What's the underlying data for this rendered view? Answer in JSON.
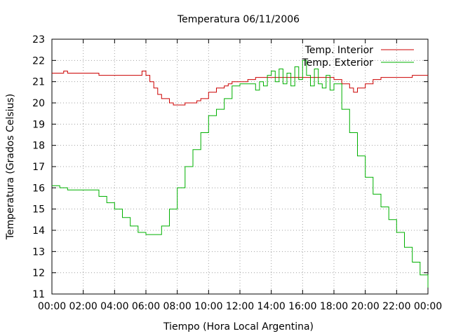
{
  "chart_data": {
    "type": "line",
    "title": "Temperatura 06/11/2006",
    "xlabel": "Tiempo (Hora Local Argentina)",
    "ylabel": "Temperatura (Grados Celsius)",
    "xlim": [
      0,
      24
    ],
    "ylim": [
      11,
      23
    ],
    "grid": true,
    "legend_position": "top-right",
    "x_ticks": [
      "00:00",
      "02:00",
      "04:00",
      "06:00",
      "08:00",
      "10:00",
      "12:00",
      "14:00",
      "16:00",
      "18:00",
      "20:00",
      "22:00",
      "00:00"
    ],
    "y_ticks": [
      "11",
      "12",
      "13",
      "14",
      "15",
      "16",
      "17",
      "18",
      "19",
      "20",
      "21",
      "22",
      "23"
    ],
    "series": [
      {
        "name": "Temp. Interior",
        "color": "#cc0000",
        "x": [
          "00:00",
          "00:45",
          "01:00",
          "02:00",
          "03:00",
          "04:00",
          "05:00",
          "05:45",
          "06:00",
          "06:15",
          "06:30",
          "06:45",
          "07:00",
          "07:30",
          "07:45",
          "08:00",
          "08:30",
          "09:00",
          "09:15",
          "09:30",
          "10:00",
          "10:30",
          "11:00",
          "11:15",
          "11:30",
          "12:00",
          "12:30",
          "13:00",
          "14:00",
          "15:00",
          "16:00",
          "17:00",
          "18:00",
          "18:30",
          "19:00",
          "19:15",
          "19:30",
          "20:00",
          "20:30",
          "21:00",
          "22:00",
          "23:00",
          "24:00"
        ],
        "y": [
          21.4,
          21.5,
          21.4,
          21.4,
          21.3,
          21.3,
          21.3,
          21.5,
          21.3,
          21.0,
          20.7,
          20.4,
          20.2,
          20.0,
          19.9,
          19.9,
          20.0,
          20.0,
          20.1,
          20.2,
          20.5,
          20.7,
          20.8,
          20.9,
          21.0,
          21.0,
          21.1,
          21.2,
          21.2,
          21.2,
          21.2,
          21.2,
          21.1,
          20.9,
          20.7,
          20.5,
          20.7,
          20.9,
          21.1,
          21.2,
          21.2,
          21.3,
          21.3
        ]
      },
      {
        "name": "Temp. Exterior",
        "color": "#00b000",
        "x": [
          "00:00",
          "00:30",
          "01:00",
          "02:00",
          "02:30",
          "03:00",
          "03:30",
          "04:00",
          "04:30",
          "05:00",
          "05:30",
          "06:00",
          "06:30",
          "07:00",
          "07:30",
          "08:00",
          "08:30",
          "09:00",
          "09:30",
          "10:00",
          "10:30",
          "11:00",
          "11:30",
          "12:00",
          "12:30",
          "13:00",
          "13:15",
          "13:30",
          "13:45",
          "14:00",
          "14:15",
          "14:30",
          "14:45",
          "15:00",
          "15:15",
          "15:30",
          "15:45",
          "16:00",
          "16:15",
          "16:30",
          "16:45",
          "17:00",
          "17:15",
          "17:30",
          "17:45",
          "18:00",
          "18:30",
          "19:00",
          "19:30",
          "20:00",
          "20:30",
          "21:00",
          "21:30",
          "22:00",
          "22:30",
          "23:00",
          "23:30",
          "24:00"
        ],
        "y": [
          16.1,
          16.0,
          15.9,
          15.9,
          15.9,
          15.6,
          15.3,
          15.0,
          14.6,
          14.2,
          13.9,
          13.8,
          13.8,
          14.2,
          15.0,
          16.0,
          17.0,
          17.8,
          18.6,
          19.4,
          19.7,
          20.2,
          20.8,
          20.9,
          20.9,
          20.6,
          21.0,
          20.8,
          21.3,
          21.5,
          21.0,
          21.6,
          20.9,
          21.4,
          20.8,
          21.7,
          21.1,
          22.0,
          21.3,
          20.8,
          21.6,
          20.9,
          20.7,
          21.3,
          20.6,
          20.9,
          19.7,
          18.6,
          17.5,
          16.5,
          15.7,
          15.1,
          14.5,
          13.9,
          13.2,
          12.5,
          11.9,
          11.3
        ]
      }
    ]
  }
}
